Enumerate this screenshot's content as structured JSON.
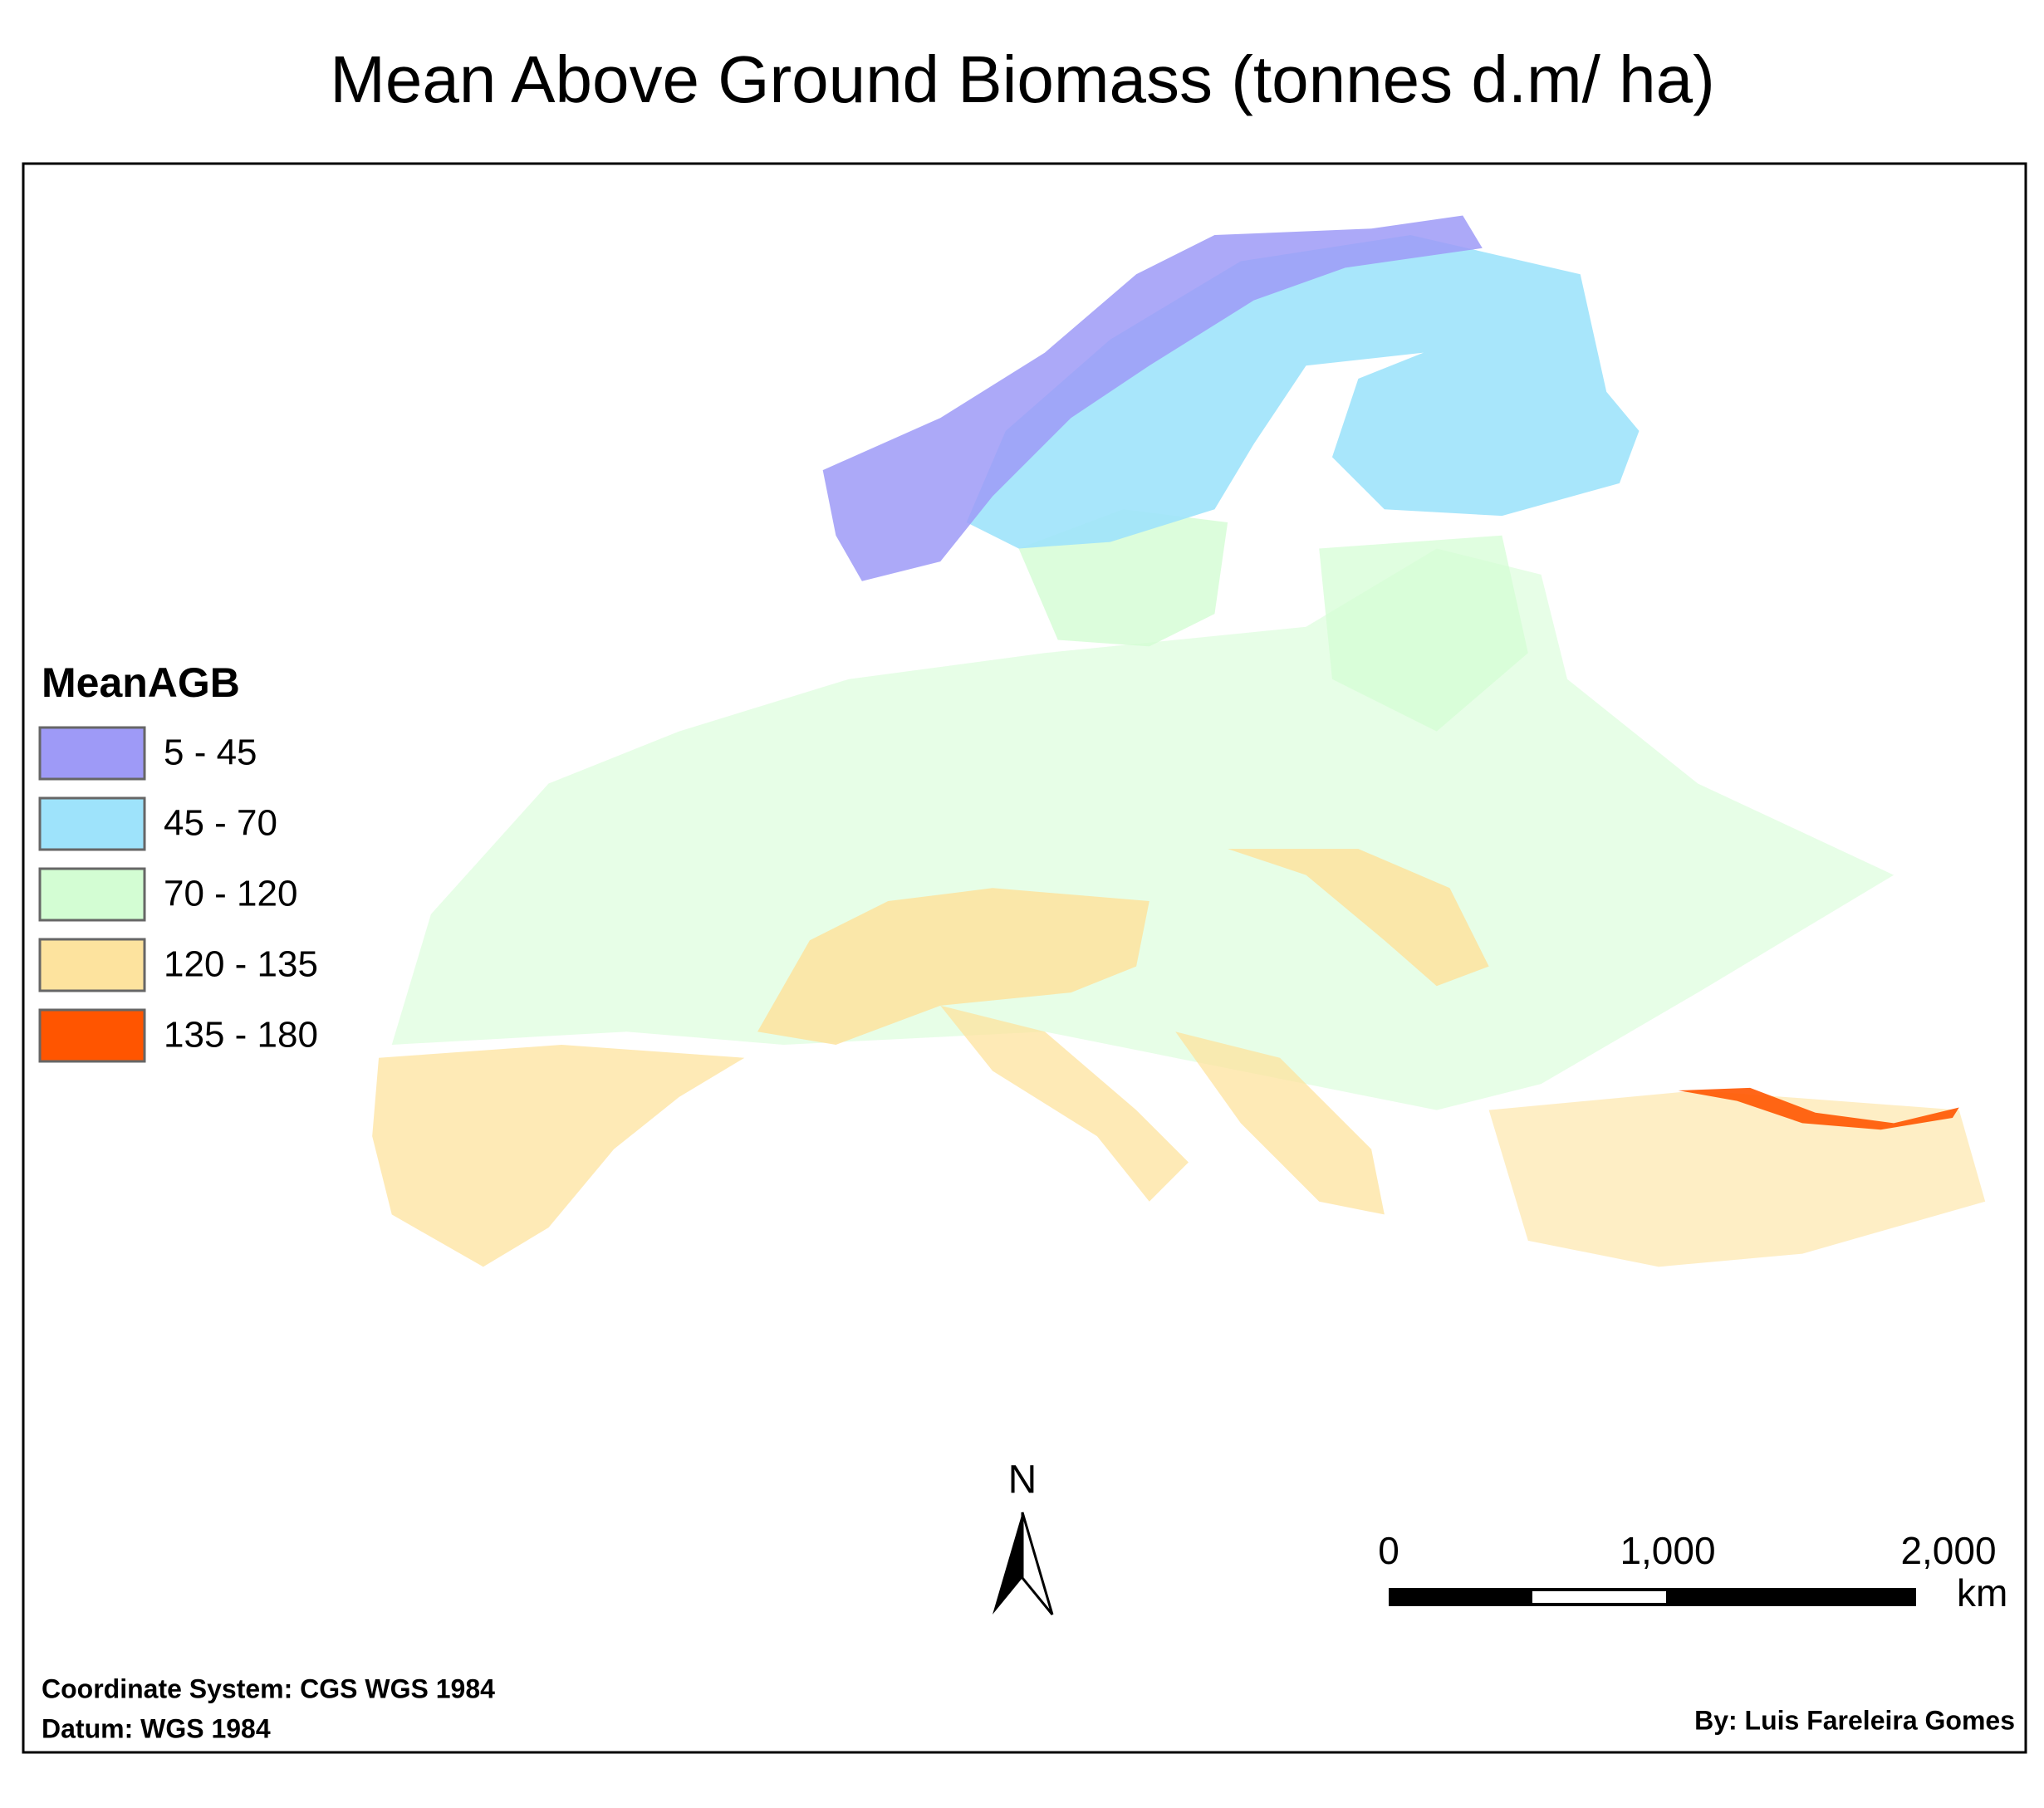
{
  "title": "Mean Above Ground Biomass (tonnes d.m/ ha)",
  "legend": {
    "title": "MeanAGB",
    "items": [
      {
        "label": "5 - 45",
        "color": "#9e9af7"
      },
      {
        "label": "45 - 70",
        "color": "#9ee3fb"
      },
      {
        "label": "70 - 120",
        "color": "#d3fdd3"
      },
      {
        "label": "120 - 135",
        "color": "#fde39e"
      },
      {
        "label": "135 - 180",
        "color": "#ff5500"
      }
    ]
  },
  "north_arrow": {
    "label": "N"
  },
  "scale_bar": {
    "labels": [
      "0",
      "1,000",
      "2,000"
    ],
    "unit": "km"
  },
  "footer": {
    "coordinate_system": "Coordinate System: CGS WGS 1984",
    "datum": "Datum: WGS 1984",
    "author": "By: Luis Fareleira Gomes"
  }
}
